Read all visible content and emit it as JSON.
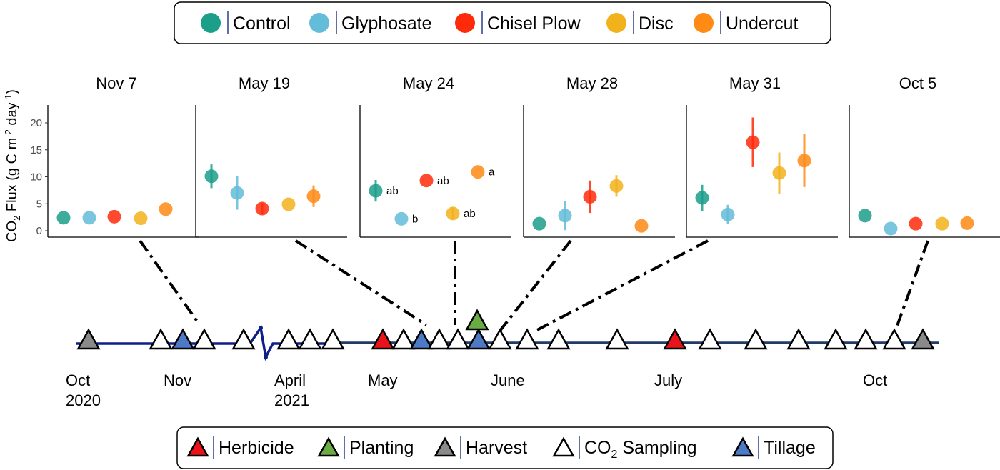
{
  "treatment_legend": {
    "items": [
      {
        "label": "Control",
        "color": "#1b9e8a"
      },
      {
        "label": "Glyphosate",
        "color": "#63bcd8"
      },
      {
        "label": "Chisel Plow",
        "color": "#ff2a0a"
      },
      {
        "label": "Disc",
        "color": "#f2b21c"
      },
      {
        "label": "Undercut",
        "color": "#ff8a14"
      }
    ]
  },
  "event_legend": {
    "items": [
      {
        "label": "Herbicide",
        "color": "#e8131b"
      },
      {
        "label": "Planting",
        "color": "#6aab43"
      },
      {
        "label": "Harvest",
        "color": "#8a8a8a"
      },
      {
        "label": "CO",
        "sub": "2",
        "label_after": " Sampling",
        "color": "#ffffff"
      },
      {
        "label": "Tillage",
        "color": "#4e79c4"
      }
    ]
  },
  "y_axis_label": {
    "pre": "CO",
    "sub": "2",
    "mid": " Flux (g C m",
    "sup1": "-2",
    "mid2": " day",
    "sup2": "-1",
    "post": ")"
  },
  "chart_data": [
    {
      "type": "scatter",
      "title": "Nov 7",
      "ylim": [
        0,
        23
      ],
      "yticks": [
        0,
        5,
        10,
        15,
        20
      ],
      "categories": [
        "Control",
        "Glyphosate",
        "Chisel Plow",
        "Disc",
        "Undercut"
      ],
      "values": [
        2.4,
        2.4,
        2.6,
        2.3,
        4.0
      ],
      "errors": [
        0,
        0,
        0,
        0,
        0
      ],
      "letters": [
        "",
        "",
        "",
        "",
        ""
      ]
    },
    {
      "type": "scatter",
      "title": "May 19",
      "ylim": [
        0,
        23
      ],
      "yticks": [
        0,
        5,
        10,
        15,
        20
      ],
      "categories": [
        "Control",
        "Glyphosate",
        "Chisel Plow",
        "Disc",
        "Undercut"
      ],
      "values": [
        10.1,
        7.0,
        4.1,
        4.9,
        6.4
      ],
      "errors": [
        2.2,
        3.1,
        1.0,
        0,
        2.0
      ],
      "letters": [
        "",
        "",
        "",
        "",
        ""
      ]
    },
    {
      "type": "scatter",
      "title": "May 24",
      "ylim": [
        0,
        23
      ],
      "yticks": [
        0,
        5,
        10,
        15,
        20
      ],
      "categories": [
        "Control",
        "Glyphosate",
        "Chisel Plow",
        "Disc",
        "Undercut"
      ],
      "values": [
        7.4,
        2.2,
        9.3,
        3.2,
        10.9
      ],
      "errors": [
        2.0,
        0,
        0,
        1.1,
        0
      ],
      "letters": [
        "ab",
        "b",
        "ab",
        "ab",
        "a"
      ]
    },
    {
      "type": "scatter",
      "title": "May 28",
      "ylim": [
        0,
        23
      ],
      "yticks": [
        0,
        5,
        10,
        15,
        20
      ],
      "categories": [
        "Control",
        "Glyphosate",
        "Chisel Plow",
        "Disc",
        "Undercut"
      ],
      "values": [
        1.3,
        2.8,
        6.3,
        8.3,
        0.9
      ],
      "errors": [
        0,
        2.7,
        3.0,
        2.0,
        0
      ],
      "letters": [
        "",
        "",
        "",
        "",
        ""
      ]
    },
    {
      "type": "scatter",
      "title": "May 31",
      "ylim": [
        0,
        23
      ],
      "yticks": [
        0,
        5,
        10,
        15,
        20
      ],
      "categories": [
        "Control",
        "Glyphosate",
        "Chisel Plow",
        "Disc",
        "Undercut"
      ],
      "values": [
        6.1,
        3.0,
        16.4,
        10.7,
        13.0
      ],
      "errors": [
        2.4,
        1.8,
        4.6,
        3.8,
        4.9
      ],
      "letters": [
        "",
        "",
        "",
        "",
        ""
      ]
    },
    {
      "type": "scatter",
      "title": "Oct 5",
      "ylim": [
        0,
        23
      ],
      "yticks": [
        0,
        5,
        10,
        15,
        20
      ],
      "categories": [
        "Control",
        "Glyphosate",
        "Chisel Plow",
        "Disc",
        "Undercut"
      ],
      "values": [
        2.8,
        0.4,
        1.3,
        1.3,
        1.4
      ],
      "errors": [
        0,
        0,
        0,
        0,
        0
      ],
      "letters": [
        "",
        "",
        "",
        "",
        ""
      ]
    }
  ],
  "timeline": {
    "labels": [
      {
        "lines": [
          "Oct",
          "2020"
        ]
      },
      {
        "lines": [
          "Nov"
        ]
      },
      {
        "lines": [
          "April",
          "2021"
        ]
      },
      {
        "lines": [
          "May"
        ]
      },
      {
        "lines": [
          "June"
        ]
      },
      {
        "lines": [
          "July"
        ]
      },
      {
        "lines": [
          "Oct"
        ]
      }
    ],
    "events": [
      "Harvest",
      "CO2 Sampling",
      "Tillage",
      "CO2 Sampling",
      "CO2 Sampling",
      "CO2 Sampling",
      "CO2 Sampling",
      "CO2 Sampling",
      "Herbicide",
      "CO2 Sampling",
      "Tillage",
      "CO2 Sampling",
      "CO2 Sampling",
      "Tillage",
      "Planting",
      "CO2 Sampling",
      "CO2 Sampling",
      "CO2 Sampling",
      "CO2 Sampling",
      "Herbicide",
      "CO2 Sampling",
      "CO2 Sampling",
      "CO2 Sampling",
      "CO2 Sampling",
      "CO2 Sampling",
      "CO2 Sampling",
      "Harvest"
    ]
  }
}
